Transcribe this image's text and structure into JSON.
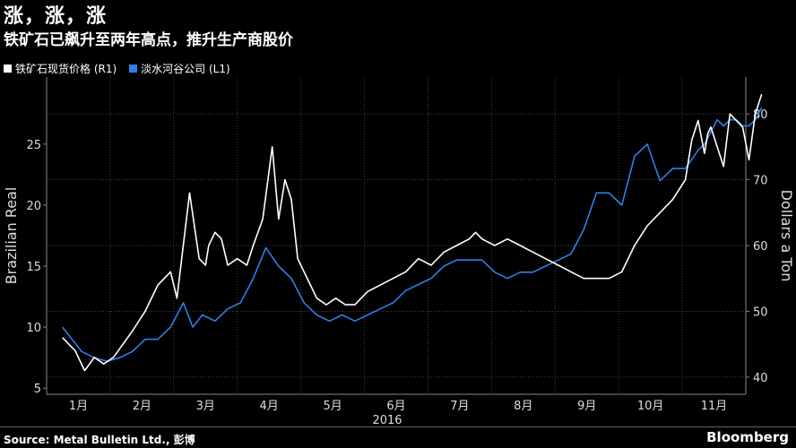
{
  "header": {
    "title": "涨，涨，涨",
    "subtitle": "铁矿石已飙升至两年高点，推升生产商股价"
  },
  "footer": {
    "source": "Source: Metal Bulletin Ltd., 彭博",
    "brand": "Bloomberg"
  },
  "colors": {
    "background": "#000000",
    "iron_ore": "#ffffff",
    "vale": "#2e7fe8",
    "grid": "#444444"
  },
  "chart_data": {
    "type": "line",
    "title": "涨，涨，涨",
    "subtitle": "铁矿石已飙升至两年高点，推升生产商股价",
    "xlabel": "2016",
    "x_ticks": [
      "1月",
      "2月",
      "3月",
      "4月",
      "5月",
      "6月",
      "7月",
      "8月",
      "9月",
      "10月",
      "11月"
    ],
    "y_left": {
      "label": "Brazilian Real",
      "ticks": [
        5,
        10,
        15,
        20,
        25
      ],
      "range": [
        4.5,
        30.5
      ]
    },
    "y_right": {
      "label": "Dollars a Ton",
      "ticks": [
        40,
        50,
        60,
        70,
        80
      ],
      "range": [
        37.4,
        85.6
      ]
    },
    "legend": {
      "position": "top-left"
    },
    "series": [
      {
        "name": "铁矿石现货价格 (R1)",
        "axis": "right",
        "color": "#ffffff",
        "x": [
          0.0,
          0.2,
          0.35,
          0.5,
          0.65,
          0.8,
          0.95,
          1.1,
          1.3,
          1.5,
          1.7,
          1.8,
          2.0,
          2.15,
          2.25,
          2.3,
          2.4,
          2.5,
          2.6,
          2.75,
          2.9,
          3.0,
          3.15,
          3.3,
          3.4,
          3.5,
          3.6,
          3.7,
          3.8,
          3.9,
          4.0,
          4.15,
          4.3,
          4.45,
          4.6,
          4.8,
          5.0,
          5.2,
          5.4,
          5.6,
          5.8,
          6.0,
          6.2,
          6.4,
          6.5,
          6.6,
          6.8,
          7.0,
          7.2,
          7.4,
          7.6,
          7.8,
          8.0,
          8.2,
          8.4,
          8.6,
          8.8,
          9.0,
          9.2,
          9.4,
          9.6,
          9.8,
          9.9,
          10.0,
          10.1,
          10.15,
          10.2,
          10.3,
          10.4,
          10.45,
          10.5,
          10.6,
          10.7,
          10.8,
          10.9,
          11.0
        ],
        "values": [
          46,
          44,
          41,
          43,
          42,
          43,
          45,
          47,
          50,
          54,
          56,
          52,
          68,
          58,
          57,
          60,
          62,
          61,
          57,
          58,
          57,
          60,
          64,
          75,
          64,
          70,
          67,
          58,
          56,
          54,
          52,
          51,
          52,
          51,
          51,
          53,
          54,
          55,
          56,
          58,
          57,
          59,
          60,
          61,
          62,
          61,
          60,
          61,
          60,
          59,
          58,
          57,
          56,
          55,
          55,
          55,
          56,
          60,
          63,
          65,
          67,
          70,
          76,
          79,
          74,
          77,
          78,
          75,
          72,
          76,
          80,
          79,
          78,
          73,
          80,
          83
        ]
      },
      {
        "name": "淡水河谷公司 (L1)",
        "axis": "left",
        "color": "#2e7fe8",
        "x": [
          0.0,
          0.15,
          0.3,
          0.5,
          0.7,
          0.9,
          1.1,
          1.3,
          1.5,
          1.7,
          1.9,
          2.05,
          2.2,
          2.4,
          2.6,
          2.8,
          3.0,
          3.2,
          3.4,
          3.6,
          3.8,
          4.0,
          4.2,
          4.4,
          4.6,
          4.8,
          5.0,
          5.2,
          5.4,
          5.6,
          5.8,
          6.0,
          6.2,
          6.4,
          6.6,
          6.8,
          7.0,
          7.2,
          7.4,
          7.6,
          7.8,
          8.0,
          8.2,
          8.4,
          8.6,
          8.8,
          9.0,
          9.2,
          9.4,
          9.6,
          9.8,
          10.0,
          10.1,
          10.2,
          10.3,
          10.4,
          10.5,
          10.6,
          10.7,
          10.8,
          10.9,
          11.0
        ],
        "values": [
          10,
          9,
          8,
          7.5,
          7.2,
          7.5,
          8,
          9,
          9,
          10,
          12,
          10,
          11,
          10.5,
          11.5,
          12,
          14,
          16.5,
          15,
          14,
          12,
          11,
          10.5,
          11,
          10.5,
          11,
          11.5,
          12,
          13,
          13.5,
          14,
          15,
          15.5,
          15.5,
          15.5,
          14.5,
          14,
          14.5,
          14.5,
          15,
          15.5,
          16,
          18,
          21,
          21,
          20,
          24,
          25,
          22,
          23,
          23,
          24.5,
          25,
          26,
          27,
          26.5,
          27,
          27,
          26.5,
          26.5,
          27,
          28
        ]
      }
    ]
  }
}
